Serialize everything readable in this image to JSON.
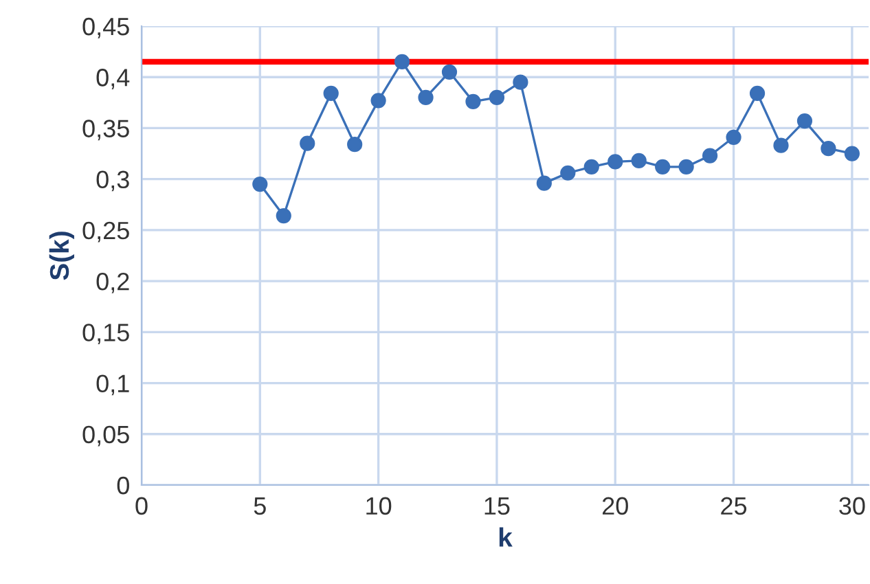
{
  "chart_data": {
    "type": "line",
    "xlabel": "k",
    "ylabel": "S(k)",
    "x": [
      5,
      6,
      7,
      8,
      9,
      10,
      11,
      12,
      13,
      14,
      15,
      16,
      17,
      18,
      19,
      20,
      21,
      22,
      23,
      24,
      25,
      26,
      27,
      28,
      29,
      30
    ],
    "series": [
      {
        "color": "#3a70b8",
        "values": [
          0.295,
          0.264,
          0.335,
          0.384,
          0.334,
          0.377,
          0.415,
          0.38,
          0.405,
          0.376,
          0.38,
          0.395,
          0.296,
          0.306,
          0.312,
          0.317,
          0.318,
          0.312,
          0.312,
          0.323,
          0.341,
          0.384,
          0.333,
          0.357,
          0.33,
          0.325
        ]
      }
    ],
    "marker": "circle",
    "line_style": "solid",
    "xlim": [
      0,
      30.7
    ],
    "xticks": [
      0,
      5,
      10,
      15,
      20,
      25,
      30
    ],
    "ylim": [
      0,
      0.45
    ],
    "yticks": [
      {
        "value": 0,
        "label": "0"
      },
      {
        "value": 0.05,
        "label": "0,05"
      },
      {
        "value": 0.1,
        "label": "0,1"
      },
      {
        "value": 0.15,
        "label": "0,15"
      },
      {
        "value": 0.2,
        "label": "0,2"
      },
      {
        "value": 0.25,
        "label": "0,25"
      },
      {
        "value": 0.3,
        "label": "0,3"
      },
      {
        "value": 0.35,
        "label": "0,35"
      },
      {
        "value": 0.4,
        "label": "0,4"
      },
      {
        "value": 0.45,
        "label": "0,45"
      }
    ],
    "ref_lines": [
      {
        "axis": "y",
        "value": 0.415,
        "color": "#ff0000"
      }
    ],
    "grid": true
  }
}
